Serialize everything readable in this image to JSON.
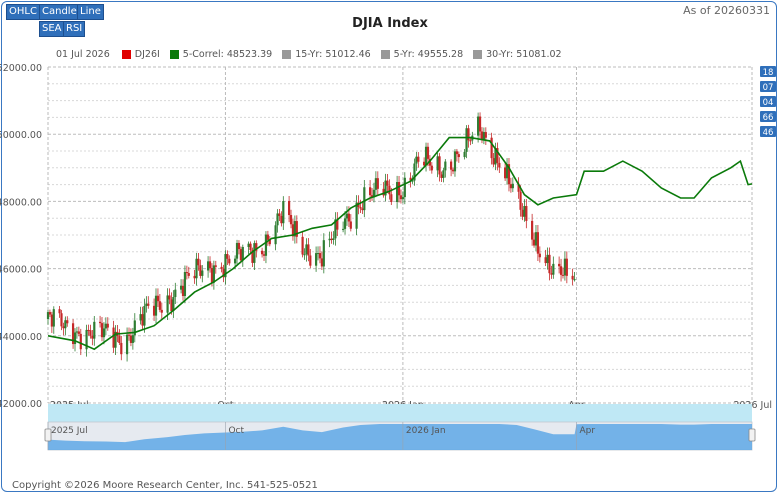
{
  "toolbar": {
    "row1": [
      "OHLC",
      "Candle",
      "Line"
    ],
    "row2": [
      "SEA",
      "RSI"
    ]
  },
  "title": "DJIA Index",
  "as_of": "As of 20260331",
  "legend": {
    "date": "01 Jul 2026",
    "items": [
      {
        "label": "DJ26I",
        "color": "#e00000"
      },
      {
        "label": "5-Correl: 48523.39",
        "color": "#0a7a0a"
      },
      {
        "label": "15-Yr: 51012.46",
        "color": "#999999"
      },
      {
        "label": "5-Yr: 49555.28",
        "color": "#999999"
      },
      {
        "label": "30-Yr: 51081.02",
        "color": "#999999"
      }
    ]
  },
  "right_badges": [
    "18",
    "07",
    "04",
    "66",
    "46"
  ],
  "footer": "Copyright ©2026 Moore Research Center, Inc. 541-525-0521",
  "navigator_labels": [
    "2025 Jul",
    "Oct",
    "2026 Jan",
    "Apr"
  ],
  "colors": {
    "up": "#2e7d32",
    "down": "#c62828",
    "correl": "#0a7a0a",
    "navigator_fill": "#5ea8e6",
    "navigator_band": "#bfe8f5",
    "accent": "#2f6fba"
  },
  "chart_data": {
    "type": "candlestick",
    "title": "DJIA Index",
    "xlabel": "",
    "ylabel": "",
    "ylim": [
      42000,
      52000
    ],
    "yticks": [
      "42000.00",
      "44000.00",
      "46000.00",
      "48000.00",
      "50000.00",
      "52000.00"
    ],
    "xlim": [
      "2025-07-01",
      "2026-07-01"
    ],
    "xticks": [
      {
        "date": "2025-07-01",
        "label": "2025 Jul"
      },
      {
        "date": "2025-10-01",
        "label": "Oct"
      },
      {
        "date": "2026-01-01",
        "label": "2026 Jan"
      },
      {
        "date": "2026-04-01",
        "label": "Apr"
      },
      {
        "date": "2026-07-01",
        "label": "2026 Jul"
      }
    ],
    "grid": true,
    "legend_position": "top-left",
    "price_series": {
      "name": "DJ26I",
      "close_points": [
        [
          "2025-07-01",
          44500
        ],
        [
          "2025-07-10",
          44250
        ],
        [
          "2025-07-20",
          44100
        ],
        [
          "2025-07-31",
          44050
        ],
        [
          "2025-08-10",
          43900
        ],
        [
          "2025-08-20",
          44600
        ],
        [
          "2025-09-01",
          45100
        ],
        [
          "2025-09-10",
          45600
        ],
        [
          "2025-09-20",
          46000
        ],
        [
          "2025-10-01",
          46200
        ],
        [
          "2025-10-10",
          46400
        ],
        [
          "2025-10-20",
          46700
        ],
        [
          "2025-10-31",
          47600
        ],
        [
          "2025-11-10",
          46700
        ],
        [
          "2025-11-20",
          46300
        ],
        [
          "2025-12-01",
          47400
        ],
        [
          "2025-12-10",
          48000
        ],
        [
          "2025-12-20",
          48300
        ],
        [
          "2026-01-01",
          48400
        ],
        [
          "2026-01-10",
          49200
        ],
        [
          "2026-01-20",
          49000
        ],
        [
          "2026-01-31",
          49400
        ],
        [
          "2026-02-10",
          50200
        ],
        [
          "2026-02-20",
          49200
        ],
        [
          "2026-03-01",
          48000
        ],
        [
          "2026-03-10",
          47000
        ],
        [
          "2026-03-20",
          45800
        ],
        [
          "2026-03-31",
          45800
        ]
      ]
    },
    "correl_series": {
      "name": "5-Correl",
      "points": [
        [
          "2025-07-01",
          44000
        ],
        [
          "2025-07-15",
          43850
        ],
        [
          "2025-07-25",
          43600
        ],
        [
          "2025-08-05",
          44050
        ],
        [
          "2025-08-15",
          44100
        ],
        [
          "2025-08-25",
          44300
        ],
        [
          "2025-09-05",
          44800
        ],
        [
          "2025-09-15",
          45300
        ],
        [
          "2025-09-25",
          45600
        ],
        [
          "2025-10-05",
          46000
        ],
        [
          "2025-10-15",
          46500
        ],
        [
          "2025-10-25",
          46900
        ],
        [
          "2025-11-05",
          47000
        ],
        [
          "2025-11-15",
          47200
        ],
        [
          "2025-11-25",
          47300
        ],
        [
          "2025-12-05",
          47800
        ],
        [
          "2025-12-15",
          48100
        ],
        [
          "2025-12-25",
          48300
        ],
        [
          "2026-01-05",
          48600
        ],
        [
          "2026-01-15",
          49200
        ],
        [
          "2026-01-25",
          49900
        ],
        [
          "2026-02-05",
          49900
        ],
        [
          "2026-02-15",
          49800
        ],
        [
          "2026-02-25",
          49000
        ],
        [
          "2026-03-05",
          48200
        ],
        [
          "2026-03-12",
          47900
        ],
        [
          "2026-03-20",
          48100
        ],
        [
          "2026-04-01",
          48200
        ],
        [
          "2026-04-05",
          48900
        ],
        [
          "2026-04-15",
          48900
        ],
        [
          "2026-04-25",
          49200
        ],
        [
          "2026-05-05",
          48900
        ],
        [
          "2026-05-15",
          48400
        ],
        [
          "2026-05-25",
          48100
        ],
        [
          "2026-06-01",
          48100
        ],
        [
          "2026-06-10",
          48700
        ],
        [
          "2026-06-20",
          49000
        ],
        [
          "2026-06-25",
          49200
        ],
        [
          "2026-06-29",
          48500
        ],
        [
          "2026-07-01",
          48520
        ]
      ]
    }
  }
}
